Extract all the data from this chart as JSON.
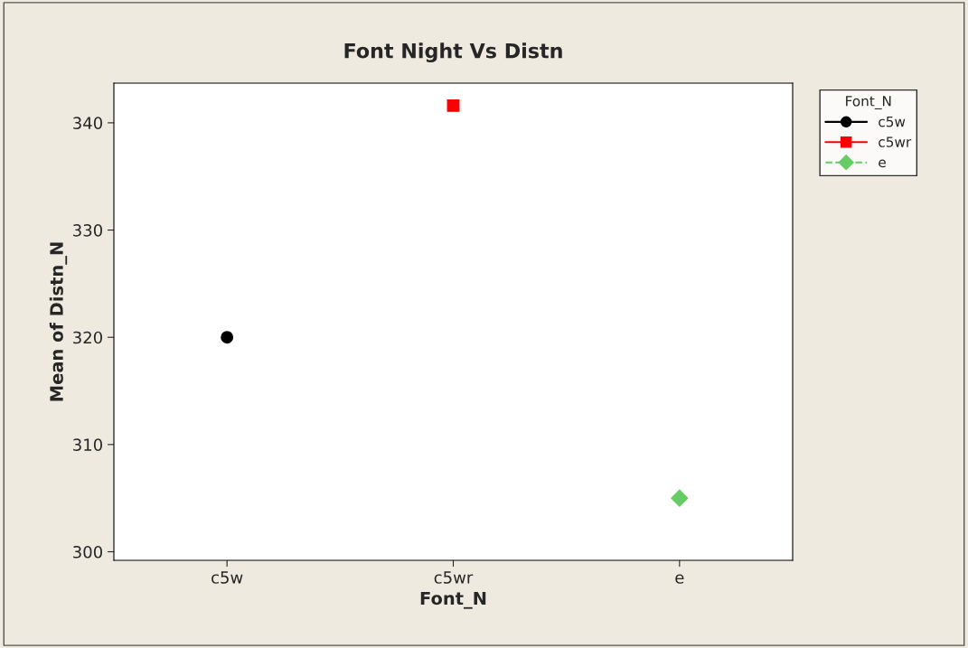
{
  "chart_data": {
    "type": "line",
    "title": "Font Night Vs Distn",
    "xlabel": "Font_N",
    "ylabel": "Mean of Distn_N",
    "legend_title": "Font_N",
    "categories": [
      "c5w",
      "c5wr",
      "e"
    ],
    "series": [
      {
        "name": "c5w",
        "color": "#000000",
        "values": [
          320,
          null,
          null
        ],
        "marker": "circle",
        "line_style": "solid"
      },
      {
        "name": "c5wr",
        "color": "#ff0000",
        "values": [
          null,
          341.6,
          null
        ],
        "marker": "square",
        "line_style": "solid"
      },
      {
        "name": "e",
        "color": "#66cc66",
        "values": [
          null,
          null,
          305
        ],
        "marker": "diamond",
        "line_style": "dashed"
      }
    ],
    "ylim": [
      299.2,
      343.7
    ],
    "yticks": [
      300,
      310,
      320,
      330,
      340
    ],
    "grid": false,
    "legend": "top right"
  }
}
